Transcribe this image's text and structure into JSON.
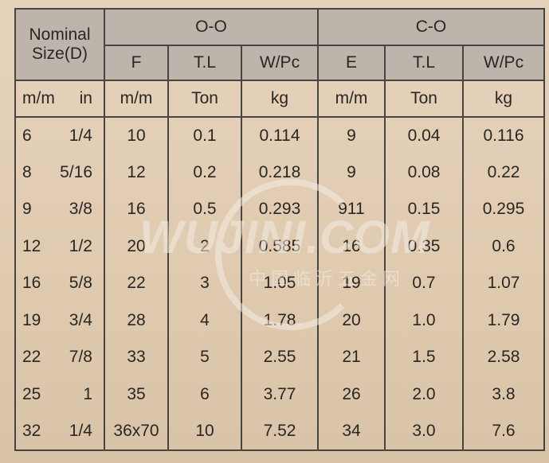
{
  "header": {
    "nominal_size": "Nominal\nSize(D)",
    "group_oo": "O-O",
    "group_co": "C-O",
    "cols": [
      "F",
      "T.L",
      "W/Pc",
      "E",
      "T.L",
      "W/Pc"
    ]
  },
  "units": {
    "size_mm": "m/m",
    "size_in": "in",
    "cols": [
      "m/m",
      "Ton",
      "kg",
      "m/m",
      "Ton",
      "kg"
    ]
  },
  "rows": [
    {
      "mm": "6",
      "in": "1/4",
      "f": "10",
      "oo_tl": "0.1",
      "oo_w": "0.114",
      "e": "9",
      "co_tl": "0.04",
      "co_w": "0.116"
    },
    {
      "mm": "8",
      "in": "5/16",
      "f": "12",
      "oo_tl": "0.2",
      "oo_w": "0.218",
      "e": "9",
      "co_tl": "0.08",
      "co_w": "0.22"
    },
    {
      "mm": "9",
      "in": "3/8",
      "f": "16",
      "oo_tl": "0.5",
      "oo_w": "0.293",
      "e": "911",
      "co_tl": "0.15",
      "co_w": "0.295"
    },
    {
      "mm": "12",
      "in": "1/2",
      "f": "20",
      "oo_tl": "2",
      "oo_w": "0.585",
      "e": "16",
      "co_tl": "0.35",
      "co_w": "0.6"
    },
    {
      "mm": "16",
      "in": "5/8",
      "f": "22",
      "oo_tl": "3",
      "oo_w": "1.05",
      "e": "19",
      "co_tl": "0.7",
      "co_w": "1.07"
    },
    {
      "mm": "19",
      "in": "3/4",
      "f": "28",
      "oo_tl": "4",
      "oo_w": "1.78",
      "e": "20",
      "co_tl": "1.0",
      "co_w": "1.79"
    },
    {
      "mm": "22",
      "in": "7/8",
      "f": "33",
      "oo_tl": "5",
      "oo_w": "2.55",
      "e": "21",
      "co_tl": "1.5",
      "co_w": "2.58"
    },
    {
      "mm": "25",
      "in": "1",
      "f": "35",
      "oo_tl": "6",
      "oo_w": "3.77",
      "e": "26",
      "co_tl": "2.0",
      "co_w": "3.8"
    },
    {
      "mm": "32",
      "in": "1/4",
      "f": "36x70",
      "oo_tl": "10",
      "oo_w": "7.52",
      "e": "34",
      "co_tl": "3.0",
      "co_w": "7.6"
    }
  ],
  "watermark": {
    "text": "WUJINI.COM",
    "subtext": "中国临沂五金网"
  }
}
